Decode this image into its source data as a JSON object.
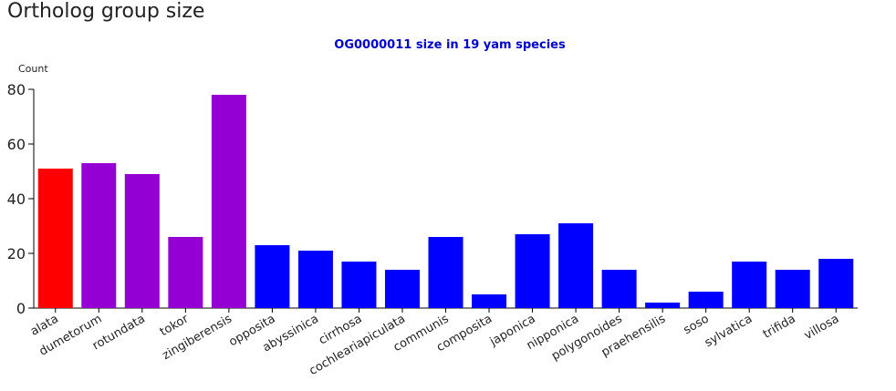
{
  "header": {
    "title": "Ortholog group size"
  },
  "chart_data": {
    "type": "bar",
    "title": "OG0000011 size in 19 yam species",
    "y_label": "Count",
    "categories": [
      "alata",
      "dumetorum",
      "rotundata",
      "tokor",
      "zingiberensis",
      "opposita",
      "abyssinica",
      "cirrhosa",
      "cochleariapiculata",
      "communis",
      "composita",
      "japonica",
      "nipponica",
      "polygonoides",
      "praehensilis",
      "soso",
      "sylvatica",
      "trifida",
      "villosa"
    ],
    "values": [
      51,
      53,
      49,
      26,
      78,
      23,
      21,
      17,
      14,
      26,
      5,
      27,
      31,
      14,
      2,
      6,
      17,
      14,
      18
    ],
    "colors": [
      "#ff0000",
      "#9400d3",
      "#9400d3",
      "#9400d3",
      "#9400d3",
      "#0000ff",
      "#0000ff",
      "#0000ff",
      "#0000ff",
      "#0000ff",
      "#0000ff",
      "#0000ff",
      "#0000ff",
      "#0000ff",
      "#0000ff",
      "#0000ff",
      "#0000ff",
      "#0000ff",
      "#0000ff"
    ],
    "title_color": "#0000cd",
    "ylim": [
      0,
      80
    ],
    "yticks": [
      0,
      20,
      40,
      60,
      80
    ]
  }
}
